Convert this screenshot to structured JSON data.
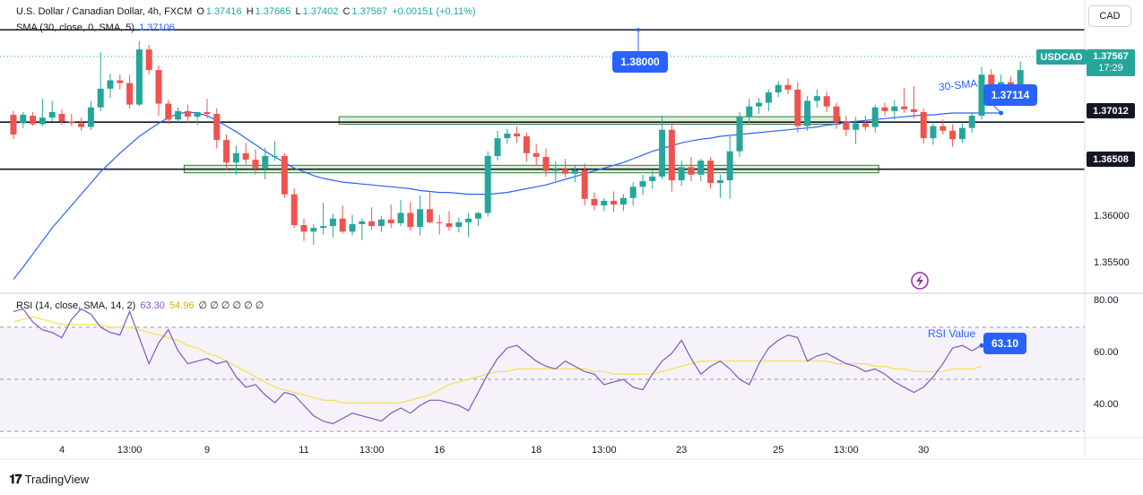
{
  "legend": {
    "symbol": "U.S. Dollar / Canadian Dollar, 4h, FXCM",
    "o_label": "O",
    "o_value": "1.37416",
    "h_label": "H",
    "h_value": "1.37665",
    "l_label": "L",
    "l_value": "1.37402",
    "c_label": "C",
    "c_value": "1.37567",
    "change": "+0.00151 (+0.11%)",
    "sma_label": "SMA (30, close, 0, SMA, 5)",
    "sma_value": "1.37106",
    "rsi_label": "RSI (14, close, SMA, 14, 2)",
    "rsi_value": "63.30",
    "rsi_ma_value": "54.96",
    "rsi_extra": "∅ ∅ ∅ ∅ ∅ ∅"
  },
  "currency": "CAD",
  "price_tags": {
    "symbol": "USDCAD",
    "last": "1.37567",
    "countdown": "17:29",
    "level_1": "1.37012",
    "level_2": "1.36508"
  },
  "callouts": {
    "target": "1.38000",
    "sma": "1.37114",
    "rsi": "63.10"
  },
  "annotations": {
    "sma": "30-SMA",
    "rsi": "RSI Value"
  },
  "branding": "TradingView",
  "colors": {
    "up": "#26a69a",
    "down": "#ef5350",
    "sma": "#2962ff",
    "rsi": "#7e57c2",
    "rsi_ma": "#f5e04a",
    "zone": "#d5ecd5"
  },
  "chart_data": [
    {
      "type": "candlestick",
      "title": "U.S. Dollar / Canadian Dollar, 4h, FXCM",
      "x_ticks": [
        {
          "i": 5,
          "label": "4"
        },
        {
          "i": 12,
          "label": "13:00"
        },
        {
          "i": 20,
          "label": "9"
        },
        {
          "i": 30,
          "label": "11"
        },
        {
          "i": 37,
          "label": "13:00"
        },
        {
          "i": 44,
          "label": "16"
        },
        {
          "i": 54,
          "label": "18"
        },
        {
          "i": 61,
          "label": "13:00"
        },
        {
          "i": 69,
          "label": "23"
        },
        {
          "i": 79,
          "label": "25"
        },
        {
          "i": 86,
          "label": "13:00"
        },
        {
          "i": 94,
          "label": "30"
        }
      ],
      "y_ticks": [
        "1.36000",
        "1.35500"
      ],
      "ylim": [
        1.352,
        1.383
      ],
      "horizontal_levels": [
        1.38,
        1.37012,
        1.36508
      ],
      "zones": [
        {
          "from_i": 34,
          "to_i": 85,
          "low": 1.3699,
          "high": 1.3707
        },
        {
          "from_i": 18,
          "to_i": 89,
          "low": 1.3647,
          "high": 1.3655
        }
      ],
      "candles": [
        {
          "o": 1.3709,
          "h": 1.3713,
          "l": 1.3683,
          "c": 1.3688
        },
        {
          "o": 1.37,
          "h": 1.3712,
          "l": 1.3695,
          "c": 1.3709
        },
        {
          "o": 1.3708,
          "h": 1.3712,
          "l": 1.3697,
          "c": 1.3699
        },
        {
          "o": 1.3699,
          "h": 1.3726,
          "l": 1.3697,
          "c": 1.3706
        },
        {
          "o": 1.3706,
          "h": 1.3724,
          "l": 1.3702,
          "c": 1.3712
        },
        {
          "o": 1.371,
          "h": 1.3715,
          "l": 1.3698,
          "c": 1.3702
        },
        {
          "o": 1.3702,
          "h": 1.371,
          "l": 1.3697,
          "c": 1.37
        },
        {
          "o": 1.37,
          "h": 1.3706,
          "l": 1.3692,
          "c": 1.3696
        },
        {
          "o": 1.3696,
          "h": 1.3724,
          "l": 1.3693,
          "c": 1.3717
        },
        {
          "o": 1.3717,
          "h": 1.3776,
          "l": 1.3713,
          "c": 1.3737
        },
        {
          "o": 1.3737,
          "h": 1.3753,
          "l": 1.3727,
          "c": 1.3746
        },
        {
          "o": 1.3746,
          "h": 1.3752,
          "l": 1.3736,
          "c": 1.3743
        },
        {
          "o": 1.3743,
          "h": 1.3752,
          "l": 1.3716,
          "c": 1.372
        },
        {
          "o": 1.372,
          "h": 1.3788,
          "l": 1.3718,
          "c": 1.3779
        },
        {
          "o": 1.3779,
          "h": 1.3784,
          "l": 1.3752,
          "c": 1.3757
        },
        {
          "o": 1.3757,
          "h": 1.3762,
          "l": 1.3708,
          "c": 1.3721
        },
        {
          "o": 1.3721,
          "h": 1.3725,
          "l": 1.3699,
          "c": 1.3704
        },
        {
          "o": 1.3704,
          "h": 1.3717,
          "l": 1.3701,
          "c": 1.3713
        },
        {
          "o": 1.3713,
          "h": 1.372,
          "l": 1.37,
          "c": 1.3707
        },
        {
          "o": 1.3707,
          "h": 1.3712,
          "l": 1.3698,
          "c": 1.3712
        },
        {
          "o": 1.3712,
          "h": 1.3726,
          "l": 1.3705,
          "c": 1.371
        },
        {
          "o": 1.371,
          "h": 1.3716,
          "l": 1.3673,
          "c": 1.3682
        },
        {
          "o": 1.3682,
          "h": 1.3688,
          "l": 1.365,
          "c": 1.3658
        },
        {
          "o": 1.3658,
          "h": 1.3676,
          "l": 1.3645,
          "c": 1.3668
        },
        {
          "o": 1.3668,
          "h": 1.3679,
          "l": 1.3656,
          "c": 1.3661
        },
        {
          "o": 1.3661,
          "h": 1.3672,
          "l": 1.3645,
          "c": 1.3652
        },
        {
          "o": 1.3652,
          "h": 1.3674,
          "l": 1.364,
          "c": 1.3665
        },
        {
          "o": 1.3665,
          "h": 1.3681,
          "l": 1.366,
          "c": 1.3665
        },
        {
          "o": 1.3665,
          "h": 1.3668,
          "l": 1.362,
          "c": 1.3624
        },
        {
          "o": 1.3624,
          "h": 1.363,
          "l": 1.3588,
          "c": 1.3591
        },
        {
          "o": 1.3591,
          "h": 1.3598,
          "l": 1.3574,
          "c": 1.3584
        },
        {
          "o": 1.3584,
          "h": 1.3592,
          "l": 1.357,
          "c": 1.3588
        },
        {
          "o": 1.3588,
          "h": 1.3615,
          "l": 1.3581,
          "c": 1.359
        },
        {
          "o": 1.359,
          "h": 1.3603,
          "l": 1.3578,
          "c": 1.3598
        },
        {
          "o": 1.3598,
          "h": 1.3612,
          "l": 1.3582,
          "c": 1.3584
        },
        {
          "o": 1.3584,
          "h": 1.3602,
          "l": 1.358,
          "c": 1.3592
        },
        {
          "o": 1.3592,
          "h": 1.3598,
          "l": 1.3575,
          "c": 1.3595
        },
        {
          "o": 1.3595,
          "h": 1.361,
          "l": 1.3586,
          "c": 1.359
        },
        {
          "o": 1.359,
          "h": 1.3601,
          "l": 1.3584,
          "c": 1.3597
        },
        {
          "o": 1.3597,
          "h": 1.3613,
          "l": 1.3588,
          "c": 1.3593
        },
        {
          "o": 1.3593,
          "h": 1.3618,
          "l": 1.359,
          "c": 1.3604
        },
        {
          "o": 1.3604,
          "h": 1.3616,
          "l": 1.3585,
          "c": 1.3589
        },
        {
          "o": 1.3589,
          "h": 1.3623,
          "l": 1.358,
          "c": 1.3608
        },
        {
          "o": 1.3608,
          "h": 1.3626,
          "l": 1.3593,
          "c": 1.3594
        },
        {
          "o": 1.3594,
          "h": 1.3602,
          "l": 1.3581,
          "c": 1.3593
        },
        {
          "o": 1.3593,
          "h": 1.3606,
          "l": 1.3585,
          "c": 1.3589
        },
        {
          "o": 1.3589,
          "h": 1.3599,
          "l": 1.3583,
          "c": 1.3594
        },
        {
          "o": 1.3594,
          "h": 1.3604,
          "l": 1.3578,
          "c": 1.3598
        },
        {
          "o": 1.3598,
          "h": 1.3605,
          "l": 1.359,
          "c": 1.3604
        },
        {
          "o": 1.3604,
          "h": 1.367,
          "l": 1.36,
          "c": 1.3665
        },
        {
          "o": 1.3665,
          "h": 1.3692,
          "l": 1.366,
          "c": 1.3684
        },
        {
          "o": 1.3684,
          "h": 1.3694,
          "l": 1.3678,
          "c": 1.3689
        },
        {
          "o": 1.3689,
          "h": 1.3697,
          "l": 1.3679,
          "c": 1.3686
        },
        {
          "o": 1.3686,
          "h": 1.369,
          "l": 1.3659,
          "c": 1.3668
        }
      ],
      "candles_2": [
        {
          "o": 1.3668,
          "h": 1.3678,
          "l": 1.3655,
          "c": 1.3664
        },
        {
          "o": 1.3664,
          "h": 1.3673,
          "l": 1.3643,
          "c": 1.3649
        },
        {
          "o": 1.3649,
          "h": 1.3659,
          "l": 1.3638,
          "c": 1.3651
        },
        {
          "o": 1.3651,
          "h": 1.3662,
          "l": 1.3642,
          "c": 1.3646
        },
        {
          "o": 1.3646,
          "h": 1.3655,
          "l": 1.3637,
          "c": 1.365
        },
        {
          "o": 1.365,
          "h": 1.3657,
          "l": 1.3612,
          "c": 1.3619
        },
        {
          "o": 1.3619,
          "h": 1.3626,
          "l": 1.3607,
          "c": 1.3612
        },
        {
          "o": 1.3612,
          "h": 1.362,
          "l": 1.3606,
          "c": 1.3617
        },
        {
          "o": 1.3617,
          "h": 1.3627,
          "l": 1.3605,
          "c": 1.3613
        },
        {
          "o": 1.3613,
          "h": 1.3624,
          "l": 1.3606,
          "c": 1.362
        },
        {
          "o": 1.362,
          "h": 1.3637,
          "l": 1.3612,
          "c": 1.3632
        },
        {
          "o": 1.3632,
          "h": 1.3645,
          "l": 1.3623,
          "c": 1.3638
        },
        {
          "o": 1.3638,
          "h": 1.3649,
          "l": 1.363,
          "c": 1.3643
        },
        {
          "o": 1.3643,
          "h": 1.3708,
          "l": 1.364,
          "c": 1.3693
        },
        {
          "o": 1.3693,
          "h": 1.37,
          "l": 1.3627,
          "c": 1.3639
        },
        {
          "o": 1.3639,
          "h": 1.366,
          "l": 1.3633,
          "c": 1.3653
        },
        {
          "o": 1.3653,
          "h": 1.3664,
          "l": 1.3638,
          "c": 1.3645
        },
        {
          "o": 1.3645,
          "h": 1.3662,
          "l": 1.3638,
          "c": 1.366
        },
        {
          "o": 1.366,
          "h": 1.3664,
          "l": 1.363,
          "c": 1.3636
        },
        {
          "o": 1.3636,
          "h": 1.3645,
          "l": 1.362,
          "c": 1.3639
        },
        {
          "o": 1.3639,
          "h": 1.3686,
          "l": 1.3619,
          "c": 1.367
        },
        {
          "o": 1.367,
          "h": 1.3712,
          "l": 1.3664,
          "c": 1.3707
        },
        {
          "o": 1.3707,
          "h": 1.3726,
          "l": 1.37,
          "c": 1.3718
        },
        {
          "o": 1.3718,
          "h": 1.3727,
          "l": 1.371,
          "c": 1.3722
        },
        {
          "o": 1.3722,
          "h": 1.3736,
          "l": 1.3713,
          "c": 1.3733
        },
        {
          "o": 1.3733,
          "h": 1.3745,
          "l": 1.3728,
          "c": 1.3741
        },
        {
          "o": 1.3741,
          "h": 1.3748,
          "l": 1.3731,
          "c": 1.3736
        },
        {
          "o": 1.3736,
          "h": 1.3744,
          "l": 1.369,
          "c": 1.3697
        },
        {
          "o": 1.3697,
          "h": 1.3729,
          "l": 1.3692,
          "c": 1.3724
        },
        {
          "o": 1.3724,
          "h": 1.3736,
          "l": 1.3717,
          "c": 1.3729
        },
        {
          "o": 1.3729,
          "h": 1.3734,
          "l": 1.3712,
          "c": 1.3718
        },
        {
          "o": 1.3718,
          "h": 1.3722,
          "l": 1.3694,
          "c": 1.3701
        },
        {
          "o": 1.3701,
          "h": 1.3708,
          "l": 1.3686,
          "c": 1.3693
        },
        {
          "o": 1.3693,
          "h": 1.3707,
          "l": 1.3678,
          "c": 1.37
        },
        {
          "o": 1.37,
          "h": 1.3708,
          "l": 1.3692,
          "c": 1.3696
        },
        {
          "o": 1.3696,
          "h": 1.372,
          "l": 1.369,
          "c": 1.3717
        },
        {
          "o": 1.3717,
          "h": 1.3722,
          "l": 1.3708,
          "c": 1.3713
        },
        {
          "o": 1.3713,
          "h": 1.3725,
          "l": 1.3704,
          "c": 1.3718
        },
        {
          "o": 1.3718,
          "h": 1.3738,
          "l": 1.3711,
          "c": 1.3715
        },
        {
          "o": 1.3715,
          "h": 1.374,
          "l": 1.3705,
          "c": 1.3712
        },
        {
          "o": 1.3712,
          "h": 1.3716,
          "l": 1.3678,
          "c": 1.3684
        },
        {
          "o": 1.3684,
          "h": 1.3701,
          "l": 1.3677,
          "c": 1.3697
        },
        {
          "o": 1.3697,
          "h": 1.3704,
          "l": 1.3688,
          "c": 1.3692
        },
        {
          "o": 1.3692,
          "h": 1.3699,
          "l": 1.3675,
          "c": 1.3683
        },
        {
          "o": 1.3683,
          "h": 1.37,
          "l": 1.3679,
          "c": 1.3695
        },
        {
          "o": 1.3695,
          "h": 1.3712,
          "l": 1.369,
          "c": 1.3708
        },
        {
          "o": 1.3708,
          "h": 1.376,
          "l": 1.3704,
          "c": 1.3752
        },
        {
          "o": 1.3752,
          "h": 1.3758,
          "l": 1.3735,
          "c": 1.374
        },
        {
          "o": 1.374,
          "h": 1.3752,
          "l": 1.3735,
          "c": 1.3744
        },
        {
          "o": 1.3744,
          "h": 1.375,
          "l": 1.3738,
          "c": 1.3741
        },
        {
          "o": 1.3741,
          "h": 1.3766,
          "l": 1.374,
          "c": 1.3757
        }
      ],
      "sma": [
        1.3533,
        1.3546,
        1.356,
        1.3574,
        1.3588,
        1.36,
        1.3612,
        1.3624,
        1.3636,
        1.3648,
        1.3658,
        1.3668,
        1.3677,
        1.3686,
        1.3693,
        1.37,
        1.3706,
        1.371,
        1.3712,
        1.3711,
        1.3708,
        1.3703,
        1.3697,
        1.3691,
        1.3684,
        1.3677,
        1.367,
        1.3664,
        1.3658,
        1.3652,
        1.3648,
        1.3644,
        1.3641,
        1.3639,
        1.3637,
        1.3636,
        1.3635,
        1.3634,
        1.3633,
        1.3632,
        1.3631,
        1.363,
        1.3628,
        1.3627,
        1.3626,
        1.3626,
        1.3625,
        1.3624,
        1.3624,
        1.3624,
        1.3625,
        1.3626,
        1.3628,
        1.363,
        1.3632,
        1.3634,
        1.3637,
        1.364,
        1.3643,
        1.3646,
        1.3649,
        1.3652,
        1.3655,
        1.3658,
        1.3662,
        1.3666,
        1.367,
        1.3673,
        1.3676,
        1.3679,
        1.3681,
        1.3683,
        1.3684,
        1.3686,
        1.3687,
        1.3688,
        1.3689,
        1.369,
        1.3691,
        1.3692,
        1.3693,
        1.3694,
        1.3695,
        1.3696,
        1.3698,
        1.3699,
        1.3701,
        1.3702,
        1.3703,
        1.3704,
        1.3705,
        1.3706,
        1.3707,
        1.3708,
        1.3709,
        1.3709,
        1.371,
        1.3711,
        1.3711,
        1.3711,
        1.3711,
        1.3711,
        1.3711
      ],
      "rsi": {
        "ylim": [
          28,
          82
        ],
        "y_ticks": [
          "80.00",
          "60.00",
          "40.00"
        ],
        "band": [
          30,
          70
        ],
        "mid": 50,
        "values": [
          76,
          77,
          72,
          69,
          68,
          66,
          73,
          77,
          75,
          70,
          68,
          67,
          76,
          66,
          56,
          64,
          69,
          61,
          56,
          57,
          58,
          56,
          57,
          51,
          47,
          48,
          44,
          41,
          45,
          44,
          40,
          36,
          34,
          33,
          35,
          37,
          36,
          35,
          34,
          37,
          39,
          37,
          40,
          42,
          42,
          41,
          40,
          38,
          45,
          52,
          58,
          62,
          63,
          60,
          57,
          55,
          54,
          57,
          55,
          53,
          52,
          48,
          49,
          50,
          47,
          46,
          52,
          57,
          60,
          65,
          58,
          52,
          55,
          57,
          54,
          50,
          48,
          56,
          62,
          65,
          67,
          66,
          57,
          59,
          60,
          58,
          56,
          55,
          53,
          54,
          52,
          49,
          47,
          45,
          47,
          51,
          56,
          62,
          63,
          61,
          63
        ]
      },
      "rsi_ma": [
        72,
        73,
        74,
        73,
        72,
        71,
        71,
        71,
        71,
        71,
        70,
        70,
        70,
        69,
        68,
        67,
        66,
        65,
        63,
        62,
        60,
        59,
        57,
        55,
        53,
        51,
        49,
        47,
        46,
        45,
        44,
        43,
        42,
        42,
        41,
        41,
        41,
        41,
        41,
        41,
        41,
        42,
        43,
        44,
        46,
        48,
        49,
        50,
        51,
        52,
        53,
        53,
        54,
        54,
        54,
        54,
        54,
        54,
        54,
        54,
        53,
        53,
        52,
        52,
        52,
        52,
        52,
        53,
        54,
        55,
        56,
        57,
        57,
        57,
        57,
        57,
        57,
        57,
        57,
        57,
        57,
        57,
        57,
        57,
        57,
        56,
        56,
        56,
        56,
        55,
        55,
        54,
        54,
        53,
        53,
        53,
        53,
        54,
        54,
        54,
        55
      ]
    }
  ]
}
